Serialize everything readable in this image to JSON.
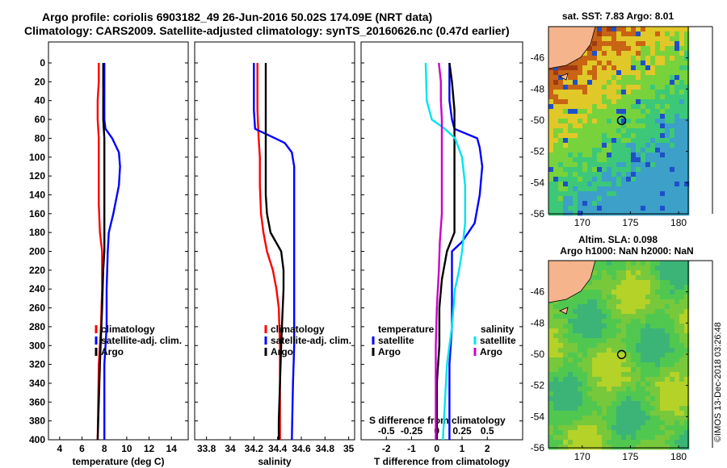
{
  "title_line1": "Argo profile: coriolis 6903182_49 26-Jun-2016 50.02S 174.09E (NRT data)",
  "title_line2": "Climatology: CARS2009. Satellite-adjusted climatology: synTS_20160626.nc (0.47d earlier)",
  "colors": {
    "climatology": "#ff0000",
    "satellite": "#0000ff",
    "argo": "#000000",
    "cyan": "#00e5ee",
    "magenta": "#cc00cc"
  },
  "chart_data": [
    {
      "type": "line",
      "id": "temperature",
      "xlabel": "temperature (deg C)",
      "ylabel": "",
      "xlim": [
        3,
        15.5
      ],
      "ylim": [
        400,
        0
      ],
      "xticks": [
        4,
        6,
        8,
        10,
        12,
        14
      ],
      "yticks": [
        0,
        20,
        40,
        60,
        80,
        100,
        120,
        140,
        160,
        180,
        200,
        220,
        240,
        260,
        280,
        300,
        320,
        340,
        360,
        380,
        400
      ],
      "legend": [
        "climatology",
        "satellite-adj. clim.",
        "Argo"
      ],
      "series": [
        {
          "name": "climatology",
          "color": "red",
          "points": [
            [
              7.5,
              0
            ],
            [
              7.5,
              20
            ],
            [
              7.4,
              40
            ],
            [
              7.4,
              60
            ],
            [
              7.5,
              80
            ],
            [
              7.5,
              100
            ],
            [
              7.5,
              150
            ],
            [
              7.6,
              180
            ],
            [
              7.8,
              200
            ],
            [
              7.8,
              240
            ],
            [
              7.7,
              280
            ],
            [
              7.5,
              320
            ],
            [
              7.4,
              400
            ]
          ]
        },
        {
          "name": "satellite-adj. clim.",
          "color": "blue",
          "points": [
            [
              8,
              0
            ],
            [
              8,
              20
            ],
            [
              8,
              40
            ],
            [
              8,
              60
            ],
            [
              8.1,
              70
            ],
            [
              8.7,
              80
            ],
            [
              9.3,
              95
            ],
            [
              9.4,
              110
            ],
            [
              9.3,
              130
            ],
            [
              8.8,
              160
            ],
            [
              8.4,
              180
            ],
            [
              8.3,
              200
            ],
            [
              8.2,
              240
            ],
            [
              8.2,
              280
            ],
            [
              8,
              320
            ],
            [
              8,
              360
            ],
            [
              8,
              400
            ]
          ]
        },
        {
          "name": "Argo",
          "color": "black",
          "points": [
            [
              7.9,
              0
            ],
            [
              7.9,
              20
            ],
            [
              7.9,
              60
            ],
            [
              8,
              80
            ],
            [
              8,
              120
            ],
            [
              8,
              150
            ],
            [
              8,
              180
            ],
            [
              8,
              200
            ],
            [
              7.9,
              220
            ],
            [
              7.8,
              260
            ],
            [
              7.6,
              320
            ],
            [
              7.5,
              360
            ],
            [
              7.4,
              400
            ]
          ]
        }
      ]
    },
    {
      "type": "line",
      "id": "salinity",
      "xlabel": "salinity",
      "ylabel": "",
      "xlim": [
        33.7,
        35.05
      ],
      "ylim": [
        400,
        0
      ],
      "xticks": [
        33.8,
        34,
        34.2,
        34.4,
        34.6,
        34.8,
        35
      ],
      "yticks": [
        0,
        20,
        40,
        60,
        80,
        100,
        120,
        140,
        160,
        180,
        200,
        220,
        240,
        260,
        280,
        300,
        320,
        340,
        360,
        380,
        400
      ],
      "legend": [
        "climatology",
        "satellite-adj. clim.",
        "Argo"
      ],
      "series": [
        {
          "name": "climatology",
          "color": "red",
          "points": [
            [
              34.23,
              0
            ],
            [
              34.23,
              20
            ],
            [
              34.23,
              50
            ],
            [
              34.24,
              80
            ],
            [
              34.25,
              100
            ],
            [
              34.25,
              130
            ],
            [
              34.26,
              160
            ],
            [
              34.28,
              180
            ],
            [
              34.31,
              200
            ],
            [
              34.36,
              220
            ],
            [
              34.39,
              240
            ],
            [
              34.41,
              260
            ],
            [
              34.42,
              300
            ],
            [
              34.42,
              340
            ],
            [
              34.42,
              400
            ]
          ]
        },
        {
          "name": "satellite-adj. clim.",
          "color": "blue",
          "points": [
            [
              34.2,
              0
            ],
            [
              34.2,
              20
            ],
            [
              34.2,
              50
            ],
            [
              34.21,
              70
            ],
            [
              34.38,
              80
            ],
            [
              34.46,
              85
            ],
            [
              34.52,
              95
            ],
            [
              34.54,
              110
            ],
            [
              34.54,
              160
            ],
            [
              34.54,
              200
            ],
            [
              34.54,
              260
            ],
            [
              34.54,
              300
            ],
            [
              34.53,
              340
            ],
            [
              34.52,
              400
            ]
          ]
        },
        {
          "name": "Argo",
          "color": "black",
          "points": [
            [
              34.3,
              0
            ],
            [
              34.3,
              20
            ],
            [
              34.3,
              50
            ],
            [
              34.3,
              80
            ],
            [
              34.3,
              100
            ],
            [
              34.3,
              120
            ],
            [
              34.3,
              140
            ],
            [
              34.31,
              160
            ],
            [
              34.34,
              180
            ],
            [
              34.43,
              200
            ],
            [
              34.45,
              220
            ],
            [
              34.45,
              240
            ],
            [
              34.44,
              270
            ],
            [
              34.43,
              300
            ],
            [
              34.42,
              340
            ],
            [
              34.41,
              380
            ],
            [
              34.41,
              400
            ]
          ]
        }
      ]
    },
    {
      "type": "line",
      "id": "differences",
      "xlabel": "T difference from climatology",
      "top_axis_label": "S difference from climatology",
      "xlim": [
        -3,
        3.4
      ],
      "ylim": [
        400,
        0
      ],
      "xticks": [
        -2,
        -1,
        0,
        1,
        2
      ],
      "top_ticks": [
        -0.5,
        -0.25,
        0,
        0.25,
        0.5
      ],
      "yticks": [
        0,
        20,
        40,
        60,
        80,
        100,
        120,
        140,
        160,
        180,
        200,
        220,
        240,
        260,
        280,
        300,
        320,
        340,
        360,
        380,
        400
      ],
      "legend_temperature": {
        "heading": "temperature",
        "items": [
          "satellite",
          "Argo"
        ]
      },
      "legend_salinity": {
        "heading": "salinity",
        "items": [
          "satellite",
          "Argo"
        ]
      },
      "series": [
        {
          "name": "T satellite",
          "color": "blue",
          "points": [
            [
              0.5,
              0
            ],
            [
              0.5,
              40
            ],
            [
              0.6,
              60
            ],
            [
              0.7,
              70
            ],
            [
              1.6,
              80
            ],
            [
              1.7,
              90
            ],
            [
              1.8,
              110
            ],
            [
              1.7,
              140
            ],
            [
              1.5,
              170
            ],
            [
              1.0,
              190
            ],
            [
              0.6,
              200
            ],
            [
              0.6,
              230
            ],
            [
              0.6,
              280
            ],
            [
              0.5,
              320
            ],
            [
              0.5,
              360
            ],
            [
              0.5,
              400
            ]
          ]
        },
        {
          "name": "T Argo",
          "color": "black",
          "points": [
            [
              0.5,
              0
            ],
            [
              0.6,
              20
            ],
            [
              0.7,
              50
            ],
            [
              0.7,
              80
            ],
            [
              0.7,
              120
            ],
            [
              0.7,
              150
            ],
            [
              0.7,
              180
            ],
            [
              0.4,
              200
            ],
            [
              0.2,
              230
            ],
            [
              0.1,
              260
            ],
            [
              0.1,
              300
            ],
            [
              0.0,
              340
            ],
            [
              0.0,
              400
            ]
          ]
        },
        {
          "name": "S satellite",
          "color": "cyan",
          "points": [
            [
              -0.11,
              0
            ],
            [
              -0.1,
              40
            ],
            [
              -0.05,
              60
            ],
            [
              0.08,
              70
            ],
            [
              0.18,
              80
            ],
            [
              0.25,
              100
            ],
            [
              0.28,
              130
            ],
            [
              0.28,
              170
            ],
            [
              0.25,
              200
            ],
            [
              0.22,
              220
            ],
            [
              0.18,
              240
            ],
            [
              0.15,
              280
            ],
            [
              0.1,
              320
            ],
            [
              0.08,
              360
            ],
            [
              0.06,
              400
            ]
          ]
        },
        {
          "name": "S Argo",
          "color": "magenta",
          "points": [
            [
              0.02,
              0
            ],
            [
              0.04,
              20
            ],
            [
              0.04,
              40
            ],
            [
              0.05,
              60
            ],
            [
              0.05,
              80
            ],
            [
              0.05,
              120
            ],
            [
              0.05,
              160
            ],
            [
              0.03,
              190
            ],
            [
              0.02,
              220
            ],
            [
              0.0,
              260
            ],
            [
              -0.01,
              300
            ],
            [
              -0.01,
              340
            ],
            [
              -0.01,
              400
            ]
          ]
        }
      ]
    },
    {
      "type": "heatmap",
      "id": "sst_map",
      "title": "sat. SST: 7.83 Argo: 8.01",
      "xlim": [
        166.5,
        181
      ],
      "ylim": [
        -56,
        -44
      ],
      "xticks": [
        170,
        175,
        180
      ],
      "yticks": [
        -46,
        -48,
        -50,
        -52,
        -54,
        -56
      ],
      "argo_lon": 174.09,
      "argo_lat": -50.02
    },
    {
      "type": "heatmap",
      "id": "sla_map",
      "title_line1": "Altim. SLA: 0.098",
      "title_line2": "Argo h1000: NaN h2000: NaN",
      "xlim": [
        166.5,
        181
      ],
      "ylim": [
        -56,
        -44
      ],
      "xticks": [
        170,
        175,
        180
      ],
      "yticks": [
        -46,
        -48,
        -50,
        -52,
        -54,
        -56
      ],
      "argo_lon": 174.09,
      "argo_lat": -50.02
    }
  ],
  "watermark": "©IMOS 13-Dec-2018 03:26:48"
}
